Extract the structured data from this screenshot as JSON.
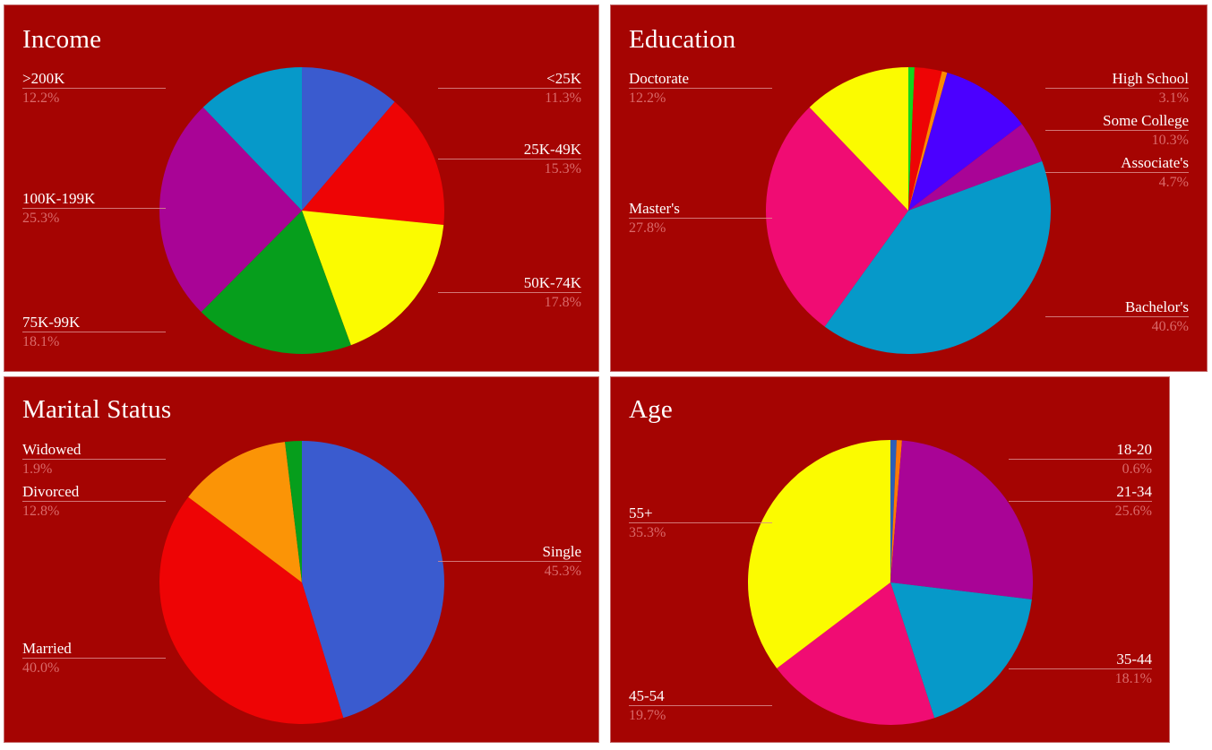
{
  "chart_data": [
    {
      "type": "pie",
      "title": "Income",
      "unit": "%",
      "categories": [
        "<25K",
        "25K-49K",
        "50K-74K",
        "75K-99K",
        "100K-199K",
        ">200K"
      ],
      "values": [
        11.3,
        15.3,
        17.8,
        18.1,
        25.3,
        12.2
      ],
      "colors": [
        "#3a5bcf",
        "#ee0405",
        "#fbfb00",
        "#069e1c",
        "#a90496",
        "#0699c9"
      ],
      "start_angle_deg": 0,
      "direction": "clockwise",
      "legend": "none (callout labels)"
    },
    {
      "type": "pie",
      "title": "Education",
      "unit": "%",
      "categories": [
        "(unlabeled green)",
        "High School",
        "(unlabeled orange)",
        "Some College",
        "Associate's",
        "Bachelor's",
        "Master's",
        "Doctorate"
      ],
      "values": [
        0.7,
        3.1,
        0.6,
        10.3,
        4.7,
        40.6,
        27.8,
        12.2
      ],
      "colors": [
        "#11d61c",
        "#ee0405",
        "#fb8a00",
        "#4b00ff",
        "#a90496",
        "#0699c9",
        "#f00c73",
        "#fbfb00"
      ],
      "start_angle_deg": 0,
      "direction": "clockwise",
      "legend": "none (callout labels)"
    },
    {
      "type": "pie",
      "title": "Marital Status",
      "unit": "%",
      "categories": [
        "Single",
        "Married",
        "Divorced",
        "Widowed"
      ],
      "values": [
        45.3,
        40.0,
        12.8,
        1.9
      ],
      "colors": [
        "#3a5bcf",
        "#ee0405",
        "#fb9406",
        "#069e1c"
      ],
      "start_angle_deg": 0,
      "direction": "clockwise",
      "legend": "none (callout labels)"
    },
    {
      "type": "pie",
      "title": "Age",
      "unit": "%",
      "categories": [
        "(unlabeled blue)",
        "18-20",
        "21-34",
        "35-44",
        "45-54",
        "55+"
      ],
      "values": [
        0.7,
        0.6,
        25.6,
        18.1,
        19.7,
        35.3
      ],
      "colors": [
        "#2a5fb8",
        "#fb7a06",
        "#a90496",
        "#0699c9",
        "#f00c73",
        "#fbfb00"
      ],
      "start_angle_deg": 0,
      "direction": "clockwise",
      "legend": "none (callout labels)"
    }
  ],
  "panels": {
    "income": {
      "title": "Income",
      "labels": [
        {
          "name": "<25K",
          "pct": "11.3%"
        },
        {
          "name": "25K-49K",
          "pct": "15.3%"
        },
        {
          "name": "50K-74K",
          "pct": "17.8%"
        },
        {
          "name": "75K-99K",
          "pct": "18.1%"
        },
        {
          "name": "100K-199K",
          "pct": "25.3%"
        },
        {
          "name": ">200K",
          "pct": "12.2%"
        }
      ]
    },
    "education": {
      "title": "Education",
      "labels": [
        {
          "name": "High School",
          "pct": "3.1%"
        },
        {
          "name": "Some College",
          "pct": "10.3%"
        },
        {
          "name": "Associate's",
          "pct": "4.7%"
        },
        {
          "name": "Bachelor's",
          "pct": "40.6%"
        },
        {
          "name": "Master's",
          "pct": "27.8%"
        },
        {
          "name": "Doctorate",
          "pct": "12.2%"
        }
      ]
    },
    "marital": {
      "title": "Marital Status",
      "labels": [
        {
          "name": "Single",
          "pct": "45.3%"
        },
        {
          "name": "Married",
          "pct": "40.0%"
        },
        {
          "name": "Divorced",
          "pct": "12.8%"
        },
        {
          "name": "Widowed",
          "pct": "1.9%"
        }
      ]
    },
    "age": {
      "title": "Age",
      "labels": [
        {
          "name": "18-20",
          "pct": "0.6%"
        },
        {
          "name": "21-34",
          "pct": "25.6%"
        },
        {
          "name": "35-44",
          "pct": "18.1%"
        },
        {
          "name": "45-54",
          "pct": "19.7%"
        },
        {
          "name": "55+",
          "pct": "35.3%"
        }
      ]
    }
  },
  "theme": {
    "panel_bg": "#a50402",
    "title_color": "#ffffff",
    "label_color": "#ffffff",
    "pct_color": "#d96a6a"
  }
}
